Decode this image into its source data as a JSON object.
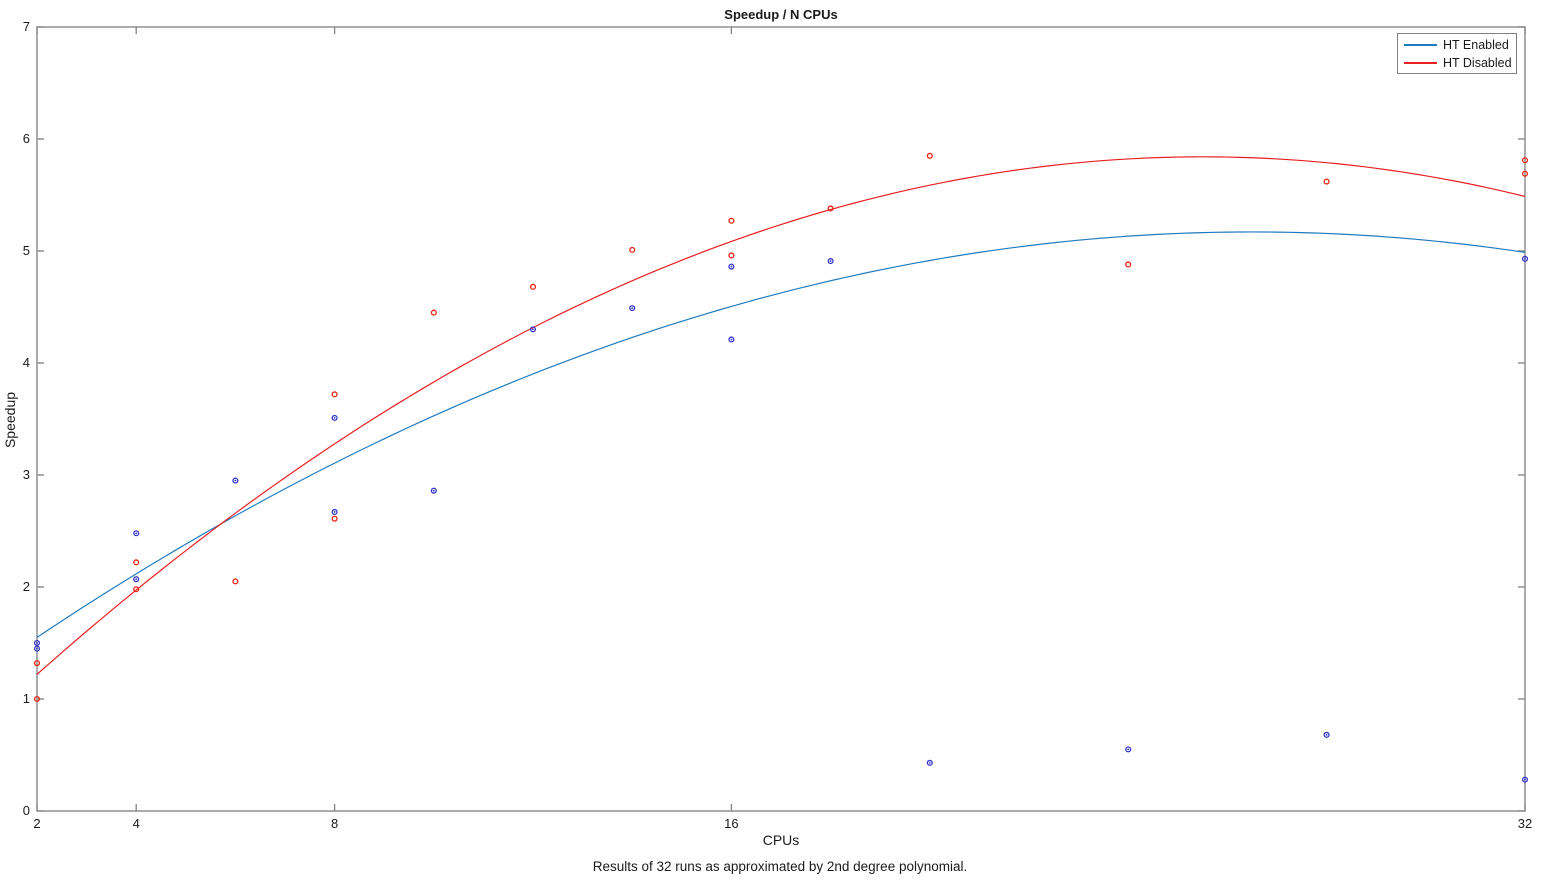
{
  "figure": {
    "title": "Speedup / N CPUs",
    "xlabel": "CPUs",
    "ylabel": "Speedup",
    "caption": "Results of 32 runs as approximated by 2nd degree polynomial."
  },
  "chart_data": {
    "type": "scatter",
    "title": "Speedup / N CPUs",
    "xlabel": "CPUs",
    "ylabel": "Speedup",
    "xlim": [
      2,
      32
    ],
    "ylim": [
      0,
      7
    ],
    "x_scale": "linear",
    "xticks": [
      2,
      4,
      8,
      16,
      32
    ],
    "yticks": [
      0,
      1,
      2,
      3,
      4,
      5,
      6,
      7
    ],
    "grid": false,
    "legend_position": "top-right",
    "axis_color": "#808080",
    "text_color": "#1a1a1a",
    "series": [
      {
        "name": "HT Enabled",
        "line_color": "#1f7bc0",
        "marker_color": "#3333cc",
        "marker": "open-circle-with-center-dot",
        "points": [
          [
            2,
            1.5
          ],
          [
            2,
            1.45
          ],
          [
            4,
            2.48
          ],
          [
            4,
            2.07
          ],
          [
            6,
            2.95
          ],
          [
            8,
            3.51
          ],
          [
            8,
            2.67
          ],
          [
            10,
            2.86
          ],
          [
            12,
            4.3
          ],
          [
            14,
            4.49
          ],
          [
            16,
            4.86
          ],
          [
            16,
            4.21
          ],
          [
            18,
            4.91
          ],
          [
            20,
            0.43
          ],
          [
            24,
            0.55
          ],
          [
            28,
            0.68
          ],
          [
            32,
            4.93
          ],
          [
            32,
            0.28
          ]
        ],
        "fit": {
          "type": "poly2",
          "a": -0.00603,
          "b": 0.3196,
          "c": 0.9354
        }
      },
      {
        "name": "HT Disabled",
        "line_color": "#e82020",
        "marker_color": "#ee2211",
        "marker": "open-circle",
        "points": [
          [
            2,
            1.32
          ],
          [
            2,
            1.0
          ],
          [
            4,
            2.22
          ],
          [
            4,
            1.98
          ],
          [
            6,
            2.05
          ],
          [
            8,
            3.72
          ],
          [
            8,
            2.61
          ],
          [
            10,
            4.45
          ],
          [
            12,
            4.68
          ],
          [
            14,
            5.01
          ],
          [
            16,
            5.27
          ],
          [
            16,
            4.96
          ],
          [
            18,
            5.38
          ],
          [
            20,
            5.85
          ],
          [
            24,
            4.88
          ],
          [
            28,
            5.62
          ],
          [
            32,
            5.81
          ],
          [
            32,
            5.69
          ]
        ],
        "fit": {
          "type": "poly2",
          "a": -0.008366,
          "b": 0.4267,
          "c": 0.4
        }
      }
    ]
  }
}
